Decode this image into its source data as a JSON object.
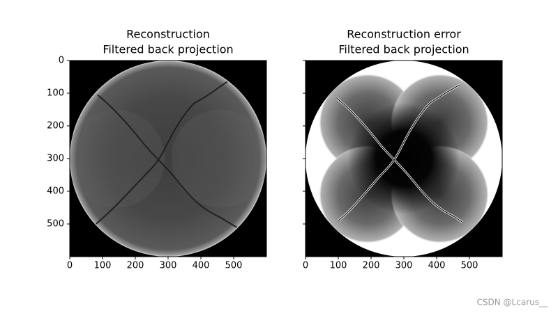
{
  "chart_data": [
    {
      "type": "image",
      "title": [
        "Reconstruction",
        "Filtered back projection"
      ],
      "xlim": [
        0,
        600
      ],
      "ylim": [
        600,
        0
      ],
      "xticks": [
        0,
        100,
        200,
        300,
        400,
        500
      ],
      "yticks": [
        0,
        100,
        200,
        300,
        400,
        500
      ],
      "ytick_labels": true,
      "colormap": "gray"
    },
    {
      "type": "image",
      "title": [
        "Reconstruction error",
        "Filtered back projection"
      ],
      "xlim": [
        0,
        600
      ],
      "ylim": [
        600,
        0
      ],
      "xticks": [
        0,
        100,
        200,
        300,
        400,
        500
      ],
      "yticks": [
        0,
        100,
        200,
        300,
        400,
        500
      ],
      "ytick_labels": false,
      "colormap": "gray"
    }
  ],
  "watermark": "CSDN @Lcarus__"
}
